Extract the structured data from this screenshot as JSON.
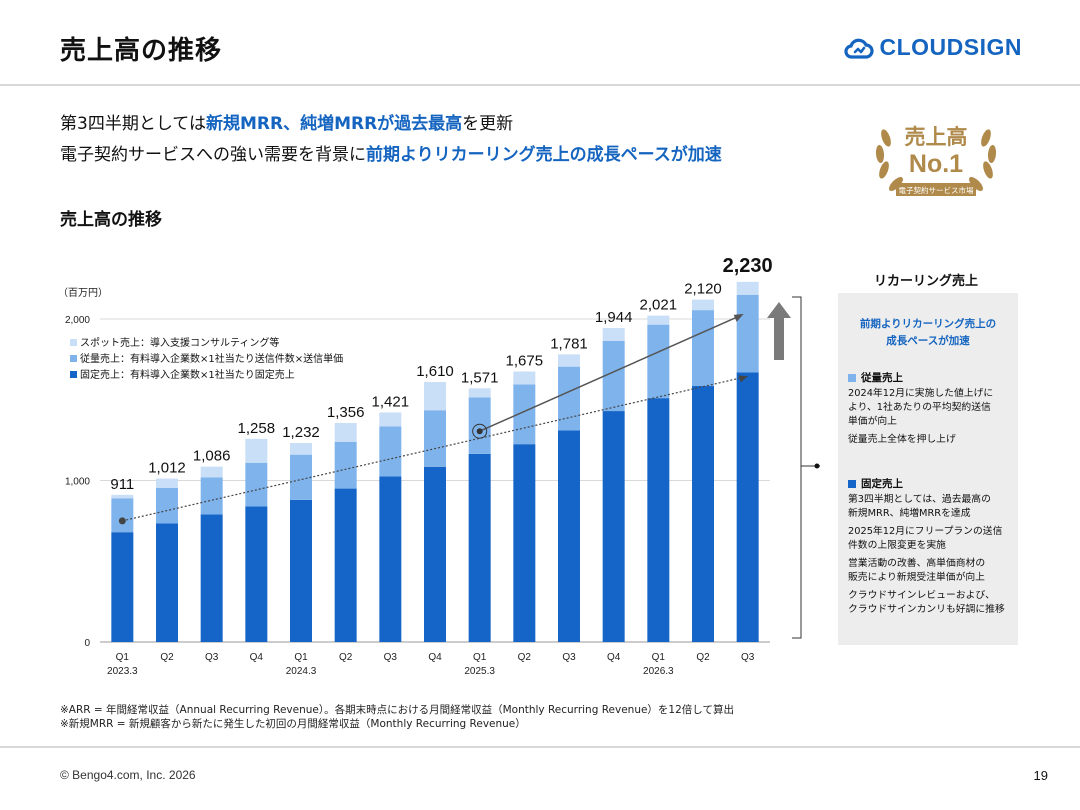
{
  "page": {
    "title": "売上高の推移",
    "logo_text": "CLOUDSIGN",
    "headline1_pre": "第3四半期としては",
    "headline1_hl": "新規MRR、純増MRRが過去最高",
    "headline1_post": "を更新",
    "headline2_pre": "電子契約サービスへの強い需要を背景に",
    "headline2_hl": "前期よりリカーリング売上の成長ペースが加速",
    "badge_line1": "売上高",
    "badge_line2": "No.1",
    "badge_ribbon": "電子契約サービス市場",
    "subtitle": "売上高の推移",
    "footnote1": "※ARR = 年間経常収益（Annual Recurring Revenue）。各期末時点における月間経常収益（Monthly Recurring Revenue）を12倍して算出",
    "footnote2": "※新規MRR = 新規顧客から新たに発生した初回の月間経常収益（Monthly Recurring Revenue）",
    "copyright": "© Bengo4.com, Inc. 2026",
    "page_number": "19"
  },
  "panel": {
    "title": "リカーリング売上",
    "head_line1": "前期よりリカーリング売上の",
    "head_line2": "成長ペースが加速",
    "sec1_title": "従量売上",
    "sec1_lines": [
      "2024年12月に実施した値上げに",
      "より、1社あたりの平均契約送信",
      "単価が向上"
    ],
    "sec1_extra": "従量売上全体を押し上げ",
    "sec2_title": "固定売上",
    "sec2_p1": [
      "第3四半期としては、過去最高の",
      "新規MRR、純増MRRを達成"
    ],
    "sec2_p2": [
      "2025年12月にフリープランの送信",
      "件数の上限変更を実施"
    ],
    "sec2_p3": [
      "営業活動の改善、高単価商材の",
      "販売により新規受注単価が向上"
    ],
    "sec2_p4": [
      "クラウドサインレビューおよび、",
      "クラウドサインカンリも好調に推移"
    ]
  },
  "colors": {
    "fixed": "#1565c8",
    "usage": "#7fb3ec",
    "spot": "#c9def7",
    "accent": "#1565c0",
    "badge_gold": "#b08a4b"
  },
  "chart_data": {
    "type": "bar",
    "stacked": true,
    "unit_label": "（百万円）",
    "categories": [
      "Q1",
      "Q2",
      "Q3",
      "Q4",
      "Q1",
      "Q2",
      "Q3",
      "Q4",
      "Q1",
      "Q2",
      "Q3",
      "Q4",
      "Q1",
      "Q2",
      "Q3"
    ],
    "year_labels": [
      "2023.3",
      "",
      "",
      "",
      "2024.3",
      "",
      "",
      "",
      "2025.3",
      "",
      "",
      "",
      "2026.3",
      "",
      ""
    ],
    "totals": [
      911,
      1012,
      1086,
      1258,
      1232,
      1356,
      1421,
      1610,
      1571,
      1675,
      1781,
      1944,
      2021,
      2120,
      2230
    ],
    "total_labels": [
      "911",
      "1,012",
      "1,086",
      "1,258",
      "1,232",
      "1,356",
      "1,421",
      "1,610",
      "1,571",
      "1,675",
      "1,781",
      "1,944",
      "2,021",
      "2,120",
      "2,230"
    ],
    "series": [
      {
        "name": "固定売上：有料導入企業数×1社当たり固定売上",
        "key": "fixed",
        "values": [
          680,
          735,
          790,
          840,
          880,
          950,
          1025,
          1085,
          1165,
          1225,
          1310,
          1430,
          1510,
          1585,
          1670
        ]
      },
      {
        "name": "従量売上：有料導入企業数×1社当たり送信件数×送信単価",
        "key": "usage",
        "values": [
          210,
          220,
          230,
          270,
          280,
          290,
          310,
          350,
          350,
          370,
          395,
          435,
          455,
          470,
          480
        ]
      },
      {
        "name": "スポット売上：導入支援コンサルティング等",
        "key": "spot",
        "values": [
          21,
          57,
          66,
          148,
          72,
          116,
          86,
          175,
          56,
          80,
          76,
          79,
          56,
          65,
          80
        ]
      }
    ],
    "yticks": [
      0,
      1000,
      2000
    ],
    "ytick_labels": [
      "0",
      "1,000",
      "2,000"
    ],
    "ylim": [
      0,
      2400
    ],
    "trend_early": {
      "from_index": 0,
      "to_index": 8,
      "from_value": 750,
      "to_value": 1305
    },
    "trend_recent": {
      "from_index": 8,
      "to_index": 14,
      "from_value": 1305,
      "to_value": 2050
    },
    "trend_early_end_to_index": 14,
    "trend_early_end_value": 1645,
    "highlight_last": true
  }
}
